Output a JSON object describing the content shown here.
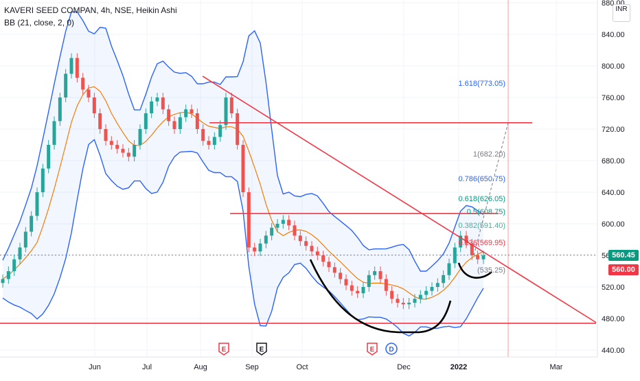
{
  "legend": {
    "symbol": "KAVERI SEED COMPAN, 4h, NSE, Heikin Ashi",
    "indicator": "BB (21, close, 2, 0)"
  },
  "currency": "INR",
  "last_price_label": "560.45",
  "close_price_label": "560.00",
  "colors": {
    "up": "#26a69a",
    "down": "#ef5350",
    "band": "#2962ff",
    "basis": "#f57c00",
    "drawing_red": "#f23645",
    "pattern": "#000000",
    "fib_blue": "#2962ff",
    "fib_green": "#089981",
    "fib_red": "#f23645"
  },
  "chart_data": {
    "type": "candlestick",
    "yaxis": {
      "ticks": [
        440,
        480,
        520,
        560,
        600,
        640,
        680,
        720,
        760,
        800,
        840,
        880
      ],
      "tick_labels": [
        "440.00",
        "480.00",
        "520.00",
        "560.00",
        "600.00",
        "640.00",
        "680.00",
        "720.00",
        "760.00",
        "800.00",
        "840.00",
        "880.00"
      ],
      "ylim": [
        433,
        885
      ]
    },
    "xaxis": {
      "labels": [
        "Jun",
        "Jul",
        "Aug",
        "Sep",
        "Oct",
        "Dec",
        "2022",
        "Mar"
      ]
    },
    "trendlines": [
      {
        "name": "resistance",
        "points": [
          [
            "Aug",
            787
          ],
          [
            "Mar+",
            475
          ]
        ]
      },
      {
        "name": "support",
        "value": 474
      },
      {
        "name": "upper-level",
        "value": 728
      },
      {
        "name": "mid-level",
        "value": 613
      }
    ],
    "fib_levels": [
      {
        "label": "1.618(773.05)"
      },
      {
        "label": "1(682.20)"
      },
      {
        "label": "0.786(650.75)"
      },
      {
        "label": "0.618(626.05)"
      },
      {
        "label": "0.5(608.75)"
      },
      {
        "label": "0.382(591.40)"
      },
      {
        "label": "0.236(569.95)"
      },
      {
        "label": "(535.25)"
      }
    ],
    "events": [
      {
        "marker": "E",
        "style": "red"
      },
      {
        "marker": "E",
        "style": "dark"
      },
      {
        "marker": "E",
        "style": "red"
      },
      {
        "marker": "D",
        "style": "blue"
      }
    ],
    "series": [
      {
        "closes": [
          530,
          540,
          555,
          570,
          590,
          610,
          640,
          670,
          700,
          730,
          760,
          790,
          810,
          785,
          770,
          760,
          740,
          720,
          705,
          700,
          695,
          690,
          685,
          700,
          720,
          740,
          755,
          760,
          745,
          730,
          720,
          735,
          745,
          740,
          720,
          705,
          700,
          710,
          725,
          760,
          740,
          700,
          640,
          570,
          565,
          575,
          585,
          595,
          600,
          605,
          598,
          585,
          578,
          572,
          565,
          560,
          552,
          545,
          538,
          530,
          522,
          515,
          512,
          520,
          535,
          540,
          530,
          515,
          505,
          500,
          498,
          500,
          505,
          510,
          515,
          520,
          525,
          535,
          550,
          570,
          585,
          575,
          560,
          555,
          560
        ]
      }
    ]
  }
}
